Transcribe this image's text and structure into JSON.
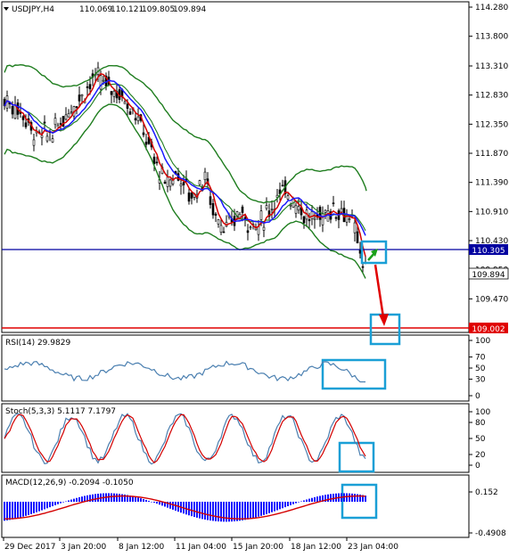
{
  "header": {
    "symbol": "USDJPY,H4",
    "open": "110.069",
    "high": "110.121",
    "low": "109.805",
    "close": "109.894"
  },
  "price_axis": {
    "ticks": [
      "114.280",
      "113.800",
      "113.310",
      "112.830",
      "112.350",
      "111.870",
      "111.390",
      "110.910",
      "110.430",
      "109.950",
      "109.470",
      "108.990"
    ],
    "level_label": "110.305",
    "current_label": "109.894",
    "target_label": "109.002"
  },
  "rsi": {
    "title": "RSI(14) 29.9829",
    "ticks": [
      "100",
      "70",
      "50",
      "30",
      "0"
    ]
  },
  "stoch": {
    "title": "Stoch(5,3,3) 5.1117 7.1797",
    "ticks": [
      "100",
      "80",
      "50",
      "20",
      "0"
    ]
  },
  "macd": {
    "title": "MACD(12,26,9) -0.2094 -0.1050",
    "ticks": [
      "0.152",
      "-0.4908"
    ]
  },
  "time_axis": {
    "labels": [
      "29 Dec 2017",
      "3 Jan 20:00",
      "8 Jan 12:00",
      "11 Jan 04:00",
      "15 Jan 20:00",
      "18 Jan 12:00",
      "23 Jan 04:00"
    ]
  },
  "colors": {
    "candle": "#000000",
    "ma_fast": "#d40000",
    "ma_slow": "#1a1aff",
    "bollinger": "#1e7d1e",
    "level_line": "#0000a0",
    "target_line": "#e00000",
    "osc_line": "#4a7fb0",
    "macd_hist": "#1010ff",
    "highlight_box": "#1a9fd6",
    "arrow_up": "#1aa01a",
    "arrow_down": "#e00000"
  },
  "chart_data": {
    "type": "candlestick",
    "symbol": "USDJPY",
    "timeframe": "H4",
    "price_range": [
      108.75,
      114.35
    ],
    "horizontal_levels": [
      110.305,
      109.002
    ],
    "close_path": [
      {
        "x": "29 Dec 2017",
        "y": 112.7
      },
      {
        "x": "3 Jan 20:00",
        "y": 112.4
      },
      {
        "x": "8 Jan 12:00",
        "y": 113.05
      },
      {
        "x": "11 Jan 04:00",
        "y": 111.4
      },
      {
        "x": "15 Jan 20:00",
        "y": 110.6
      },
      {
        "x": "18 Jan 12:00",
        "y": 110.8
      },
      {
        "x": "23 Jan 04:00",
        "y": 110.95
      },
      {
        "x": "last",
        "y": 109.894
      }
    ],
    "rsi_last": 29.9829,
    "stoch_last": [
      5.1117,
      7.1797
    ],
    "macd_last": [
      -0.2094,
      -0.105
    ]
  }
}
